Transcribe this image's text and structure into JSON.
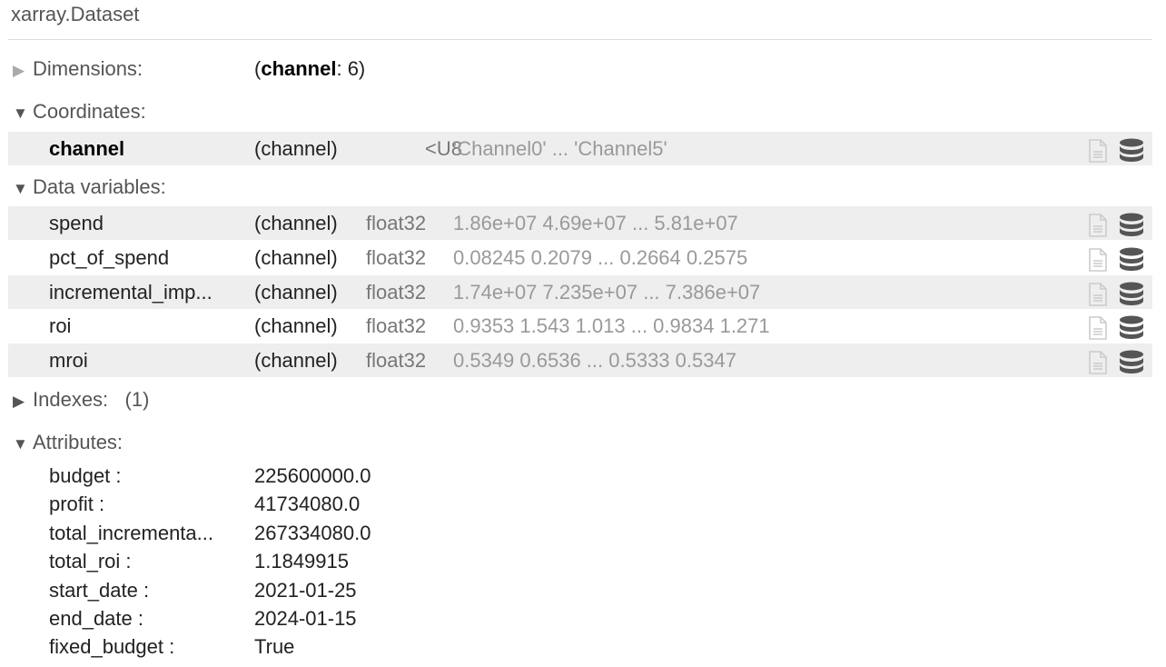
{
  "title": "xarray.Dataset",
  "sections": {
    "dimensions": {
      "label": "Dimensions:",
      "dim_name": "channel",
      "dim_size": ": 6)",
      "open": "(",
      "expanded": false
    },
    "coordinates": {
      "label": "Coordinates:",
      "expanded": true
    },
    "data_variables": {
      "label": "Data variables:",
      "expanded": true
    },
    "indexes": {
      "label": "Indexes:",
      "count": "(1)",
      "expanded": false
    },
    "attributes": {
      "label": "Attributes:",
      "expanded": true
    }
  },
  "coordinates": [
    {
      "name": "channel",
      "dims": "(channel)",
      "dtype": "<U8",
      "preview": "'Channel0' ... 'Channel5'"
    }
  ],
  "data_vars": [
    {
      "name": "spend",
      "dims": "(channel)",
      "dtype": "float32",
      "preview": "1.86e+07 4.69e+07 ... 5.81e+07"
    },
    {
      "name": "pct_of_spend",
      "dims": "(channel)",
      "dtype": "float32",
      "preview": "0.08245 0.2079 ... 0.2664 0.2575"
    },
    {
      "name": "incremental_imp...",
      "dims": "(channel)",
      "dtype": "float32",
      "preview": "1.74e+07 7.235e+07 ... 7.386e+07"
    },
    {
      "name": "roi",
      "dims": "(channel)",
      "dtype": "float32",
      "preview": "0.9353 1.543 1.013 ... 0.9834 1.271"
    },
    {
      "name": "mroi",
      "dims": "(channel)",
      "dtype": "float32",
      "preview": "0.5349 0.6536 ... 0.5333 0.5347"
    }
  ],
  "attributes": [
    {
      "key": "budget :",
      "value": "225600000.0"
    },
    {
      "key": "profit :",
      "value": "41734080.0"
    },
    {
      "key": "total_incrementa...",
      "value": "267334080.0"
    },
    {
      "key": "total_roi :",
      "value": "1.1849915"
    },
    {
      "key": "start_date :",
      "value": "2021-01-25"
    },
    {
      "key": "end_date :",
      "value": "2024-01-15"
    },
    {
      "key": "fixed_budget :",
      "value": "True"
    }
  ],
  "icons": {
    "attrs": "file-text-icon",
    "data": "database-icon"
  }
}
